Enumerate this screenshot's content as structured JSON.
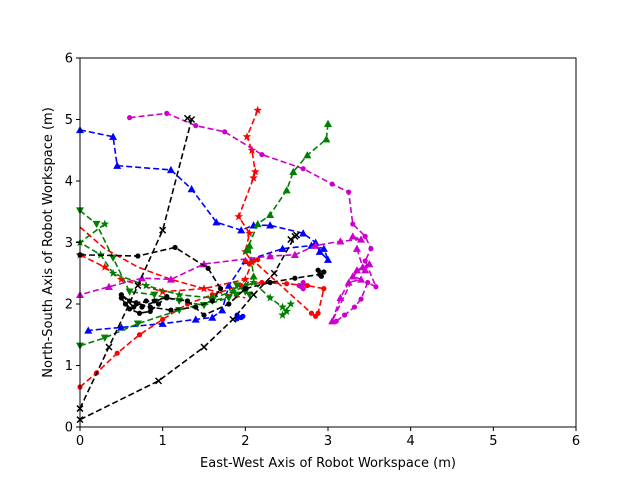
{
  "chart_data": {
    "type": "line",
    "xlabel": "East-West Axis of Robot Workspace (m)",
    "ylabel": "North-South Axis of Robot Workspace (m)",
    "xlim": [
      0,
      6
    ],
    "ylim": [
      0,
      6
    ],
    "xticks": [
      "0",
      "1",
      "2",
      "3",
      "4",
      "5",
      "6"
    ],
    "yticks": [
      "0",
      "1",
      "2",
      "3",
      "4",
      "5",
      "6"
    ],
    "grid": false,
    "series": [
      {
        "color": "#0000ff",
        "marker": "triangle-up",
        "linestyle": "dashed",
        "points": [
          [
            0.0,
            4.83
          ],
          [
            0.4,
            4.72
          ],
          [
            0.45,
            4.25
          ],
          [
            1.1,
            4.18
          ],
          [
            1.35,
            3.87
          ],
          [
            1.65,
            3.33
          ],
          [
            1.95,
            3.2
          ],
          [
            2.1,
            3.28
          ],
          [
            2.3,
            3.28
          ],
          [
            2.7,
            3.15
          ],
          [
            2.85,
            3.0
          ],
          [
            2.9,
            2.85
          ],
          [
            3.0,
            2.72
          ],
          [
            2.95,
            2.9
          ],
          [
            2.8,
            2.95
          ],
          [
            2.45,
            2.9
          ],
          [
            2.0,
            2.7
          ],
          [
            1.8,
            2.3
          ],
          [
            1.72,
            1.9
          ],
          [
            1.6,
            1.78
          ],
          [
            1.4,
            1.75
          ],
          [
            1.0,
            1.68
          ],
          [
            0.5,
            1.62
          ],
          [
            0.1,
            1.57
          ]
        ]
      },
      {
        "color": "#0000ff",
        "marker": "circle",
        "linestyle": "dashed",
        "points": [
          [
            1.9,
            1.82
          ],
          [
            1.95,
            1.78
          ],
          [
            1.9,
            1.76
          ],
          [
            1.97,
            1.8
          ]
        ]
      },
      {
        "color": "#ff0000",
        "marker": "star",
        "linestyle": "dashed",
        "points": [
          [
            2.15,
            5.15
          ],
          [
            2.02,
            4.72
          ],
          [
            2.08,
            4.5
          ],
          [
            2.12,
            4.15
          ],
          [
            2.1,
            4.05
          ],
          [
            1.92,
            3.42
          ],
          [
            2.05,
            3.15
          ],
          [
            2.0,
            2.85
          ],
          [
            2.08,
            2.68
          ],
          [
            2.0,
            2.4
          ],
          [
            1.5,
            2.25
          ],
          [
            1.0,
            2.2
          ],
          [
            0.5,
            2.4
          ],
          [
            0.3,
            2.6
          ],
          [
            0.0,
            2.8
          ]
        ]
      },
      {
        "color": "#ff0000",
        "marker": "circle",
        "linestyle": "dashed",
        "points": [
          [
            0.0,
            0.65
          ],
          [
            0.2,
            0.88
          ],
          [
            0.45,
            1.2
          ],
          [
            0.72,
            1.5
          ],
          [
            1.0,
            1.75
          ],
          [
            1.3,
            2.0
          ],
          [
            1.6,
            2.15
          ],
          [
            1.95,
            2.3
          ],
          [
            2.2,
            2.35
          ],
          [
            2.5,
            2.33
          ],
          [
            2.75,
            2.3
          ],
          [
            2.95,
            2.25
          ],
          [
            2.88,
            1.85
          ],
          [
            2.85,
            1.8
          ],
          [
            2.8,
            1.85
          ],
          [
            2.1,
            2.7
          ],
          [
            2.05,
            2.65
          ],
          [
            2.15,
            2.72
          ],
          [
            2.0,
            2.7
          ]
        ]
      },
      {
        "color": "#ff0000",
        "marker": "none",
        "linestyle": "dashed",
        "points": [
          [
            0.0,
            3.25
          ],
          [
            0.3,
            2.9
          ],
          [
            0.7,
            2.6
          ],
          [
            1.1,
            2.4
          ],
          [
            1.5,
            2.25
          ],
          [
            1.8,
            2.15
          ],
          [
            2.0,
            2.1
          ]
        ]
      },
      {
        "color": "#008000",
        "marker": "triangle-up",
        "linestyle": "dashed",
        "points": [
          [
            3.0,
            4.93
          ],
          [
            2.98,
            4.68
          ],
          [
            2.75,
            4.42
          ],
          [
            2.58,
            4.15
          ],
          [
            2.5,
            3.85
          ],
          [
            2.3,
            3.45
          ],
          [
            2.15,
            3.3
          ],
          [
            2.02,
            2.88
          ],
          [
            2.05,
            2.95
          ],
          [
            2.1,
            2.45
          ],
          [
            2.0,
            2.3
          ]
        ]
      },
      {
        "color": "#008000",
        "marker": "star",
        "linestyle": "dashed",
        "points": [
          [
            0.3,
            3.3
          ],
          [
            0.0,
            3.0
          ],
          [
            0.25,
            2.8
          ],
          [
            0.4,
            2.5
          ],
          [
            0.8,
            2.3
          ],
          [
            1.2,
            2.15
          ],
          [
            1.6,
            2.1
          ],
          [
            1.85,
            2.2
          ],
          [
            2.1,
            2.35
          ],
          [
            2.3,
            2.1
          ],
          [
            2.45,
            1.95
          ],
          [
            2.5,
            1.88
          ],
          [
            2.45,
            1.82
          ],
          [
            2.55,
            2.0
          ]
        ]
      },
      {
        "color": "#008000",
        "marker": "triangle-down",
        "linestyle": "dashed",
        "points": [
          [
            0.0,
            3.52
          ],
          [
            0.2,
            3.3
          ],
          [
            0.4,
            2.75
          ],
          [
            0.6,
            2.2
          ],
          [
            0.9,
            2.15
          ],
          [
            1.2,
            2.05
          ],
          [
            1.5,
            1.98
          ],
          [
            1.8,
            2.1
          ],
          [
            1.9,
            2.3
          ],
          [
            2.0,
            2.2
          ],
          [
            2.05,
            2.15
          ]
        ]
      },
      {
        "color": "#008000",
        "marker": "triangle-down",
        "linestyle": "dashed",
        "points": [
          [
            0.0,
            1.32
          ],
          [
            0.3,
            1.45
          ],
          [
            0.7,
            1.68
          ],
          [
            1.2,
            1.9
          ],
          [
            1.6,
            2.05
          ],
          [
            1.9,
            2.15
          ]
        ]
      },
      {
        "color": "#cc00cc",
        "marker": "circle",
        "linestyle": "dashed",
        "points": [
          [
            0.6,
            5.03
          ],
          [
            1.05,
            5.1
          ],
          [
            1.4,
            4.9
          ],
          [
            1.75,
            4.8
          ],
          [
            2.2,
            4.43
          ],
          [
            2.7,
            4.2
          ],
          [
            3.05,
            3.95
          ],
          [
            3.25,
            3.82
          ],
          [
            3.3,
            3.3
          ],
          [
            3.45,
            3.1
          ],
          [
            3.52,
            2.9
          ],
          [
            3.45,
            2.7
          ],
          [
            3.58,
            2.28
          ],
          [
            3.48,
            2.35
          ],
          [
            3.4,
            2.08
          ],
          [
            3.32,
            1.95
          ],
          [
            3.2,
            1.82
          ],
          [
            3.1,
            1.72
          ]
        ]
      },
      {
        "color": "#cc00cc",
        "marker": "triangle-up",
        "linestyle": "dashed",
        "points": [
          [
            3.3,
            3.1
          ],
          [
            3.4,
            3.05
          ],
          [
            3.15,
            3.02
          ],
          [
            2.85,
            2.95
          ],
          [
            2.6,
            2.8
          ],
          [
            2.3,
            2.78
          ],
          [
            1.5,
            2.65
          ],
          [
            1.1,
            2.4
          ],
          [
            0.75,
            2.42
          ],
          [
            0.35,
            2.28
          ],
          [
            0.0,
            2.15
          ]
        ]
      },
      {
        "color": "#cc00cc",
        "marker": "triangle-up",
        "linestyle": "dashed",
        "points": [
          [
            3.35,
            2.9
          ],
          [
            3.42,
            2.6
          ],
          [
            3.3,
            2.45
          ],
          [
            3.4,
            2.4
          ],
          [
            3.25,
            2.35
          ],
          [
            3.15,
            2.1
          ],
          [
            3.05,
            1.72
          ],
          [
            3.35,
            2.55
          ],
          [
            3.5,
            2.65
          ],
          [
            3.45,
            2.55
          ]
        ]
      },
      {
        "color": "#cc00cc",
        "marker": "circle",
        "linestyle": "dashed",
        "points": [
          [
            2.7,
            2.35
          ],
          [
            2.65,
            2.3
          ],
          [
            2.7,
            2.25
          ],
          [
            2.68,
            2.28
          ]
        ]
      },
      {
        "color": "#000000",
        "marker": "x",
        "linestyle": "dashed",
        "points": [
          [
            0.0,
            0.12
          ],
          [
            0.95,
            0.75
          ],
          [
            1.5,
            1.3
          ],
          [
            1.85,
            1.75
          ],
          [
            2.1,
            2.15
          ],
          [
            2.35,
            2.5
          ],
          [
            2.6,
            3.1
          ],
          [
            2.55,
            3.05
          ],
          [
            2.62,
            3.12
          ]
        ]
      },
      {
        "color": "#000000",
        "marker": "x",
        "linestyle": "dashed",
        "points": [
          [
            0.0,
            0.3
          ],
          [
            0.35,
            1.3
          ],
          [
            0.7,
            2.3
          ],
          [
            1.0,
            3.2
          ],
          [
            1.35,
            5.0
          ],
          [
            1.3,
            5.02
          ]
        ]
      },
      {
        "color": "#000000",
        "marker": "circle",
        "linestyle": "dashed",
        "points": [
          [
            0.0,
            2.8
          ],
          [
            0.7,
            2.78
          ],
          [
            1.15,
            2.92
          ],
          [
            1.55,
            2.58
          ],
          [
            1.7,
            2.25
          ],
          [
            1.6,
            2.05
          ],
          [
            1.4,
            1.95
          ],
          [
            1.1,
            1.9
          ],
          [
            0.85,
            1.95
          ],
          [
            0.6,
            2.05
          ],
          [
            0.5,
            2.15
          ],
          [
            0.65,
            1.95
          ],
          [
            0.8,
            2.05
          ],
          [
            1.05,
            2.1
          ],
          [
            1.3,
            2.05
          ],
          [
            1.5,
            1.82
          ],
          [
            1.8,
            2.0
          ],
          [
            2.0,
            2.25
          ],
          [
            2.3,
            2.35
          ],
          [
            2.6,
            2.42
          ],
          [
            2.9,
            2.48
          ],
          [
            2.95,
            2.52
          ],
          [
            2.88,
            2.55
          ],
          [
            2.92,
            2.45
          ]
        ]
      },
      {
        "color": "#000000",
        "marker": "circle",
        "linestyle": "dashed",
        "points": [
          [
            0.5,
            2.1
          ],
          [
            0.55,
            2.0
          ],
          [
            0.6,
            1.92
          ],
          [
            0.72,
            1.85
          ],
          [
            0.85,
            1.88
          ],
          [
            0.95,
            2.0
          ],
          [
            1.05,
            2.12
          ],
          [
            0.75,
            1.95
          ],
          [
            0.68,
            2.02
          ],
          [
            0.9,
            2.05
          ]
        ]
      }
    ]
  }
}
